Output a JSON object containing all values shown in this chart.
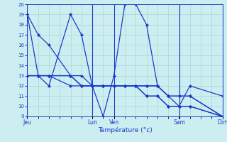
{
  "background_color": "#cceef0",
  "grid_color": "#9fcfcf",
  "line_color": "#1a3acc",
  "marker_color": "#1a3acc",
  "xlabel": "Température (°c)",
  "ylim": [
    9,
    20
  ],
  "yticks": [
    9,
    10,
    11,
    12,
    13,
    14,
    15,
    16,
    17,
    18,
    19,
    20
  ],
  "day_labels": [
    "Jeu",
    "Lun",
    "Ven",
    "Sam",
    "Dim"
  ],
  "day_positions": [
    0.0,
    0.333,
    0.444,
    0.778,
    1.0
  ],
  "series": [
    {
      "x": [
        0.0,
        0.056,
        0.111,
        0.222,
        0.278,
        0.333,
        0.389,
        0.444,
        0.5,
        0.556,
        0.611,
        0.667,
        0.722,
        0.778,
        0.833,
        1.0
      ],
      "y": [
        19,
        17,
        16,
        13,
        12,
        12,
        12,
        12,
        12,
        12,
        12,
        12,
        11,
        11,
        11,
        9
      ]
    },
    {
      "x": [
        0.0,
        0.056,
        0.111,
        0.222,
        0.278,
        0.333,
        0.389,
        0.444,
        0.5,
        0.556,
        0.611,
        0.667,
        0.722,
        0.778,
        0.833,
        1.0
      ],
      "y": [
        19,
        13,
        12,
        19,
        17,
        12,
        9,
        13,
        20,
        20,
        18,
        12,
        11,
        10,
        12,
        11
      ]
    },
    {
      "x": [
        0.0,
        0.056,
        0.111,
        0.222,
        0.278,
        0.333,
        0.389,
        0.444,
        0.5,
        0.556,
        0.611,
        0.667,
        0.722,
        0.778,
        0.833,
        1.0
      ],
      "y": [
        13,
        13,
        13,
        13,
        13,
        12,
        12,
        12,
        12,
        12,
        12,
        12,
        11,
        11,
        11,
        9
      ]
    },
    {
      "x": [
        0.0,
        0.056,
        0.111,
        0.222,
        0.278,
        0.333,
        0.389,
        0.444,
        0.5,
        0.556,
        0.611,
        0.667,
        0.722,
        0.778,
        0.833,
        1.0
      ],
      "y": [
        13,
        13,
        13,
        13,
        12,
        12,
        12,
        12,
        12,
        12,
        11,
        11,
        10,
        10,
        10,
        9
      ]
    },
    {
      "x": [
        0.0,
        0.056,
        0.111,
        0.222,
        0.278,
        0.333,
        0.389,
        0.444,
        0.5,
        0.556,
        0.611,
        0.667,
        0.722,
        0.778,
        0.833,
        1.0
      ],
      "y": [
        13,
        13,
        13,
        12,
        12,
        12,
        12,
        12,
        12,
        12,
        11,
        11,
        10,
        10,
        10,
        9
      ]
    }
  ]
}
